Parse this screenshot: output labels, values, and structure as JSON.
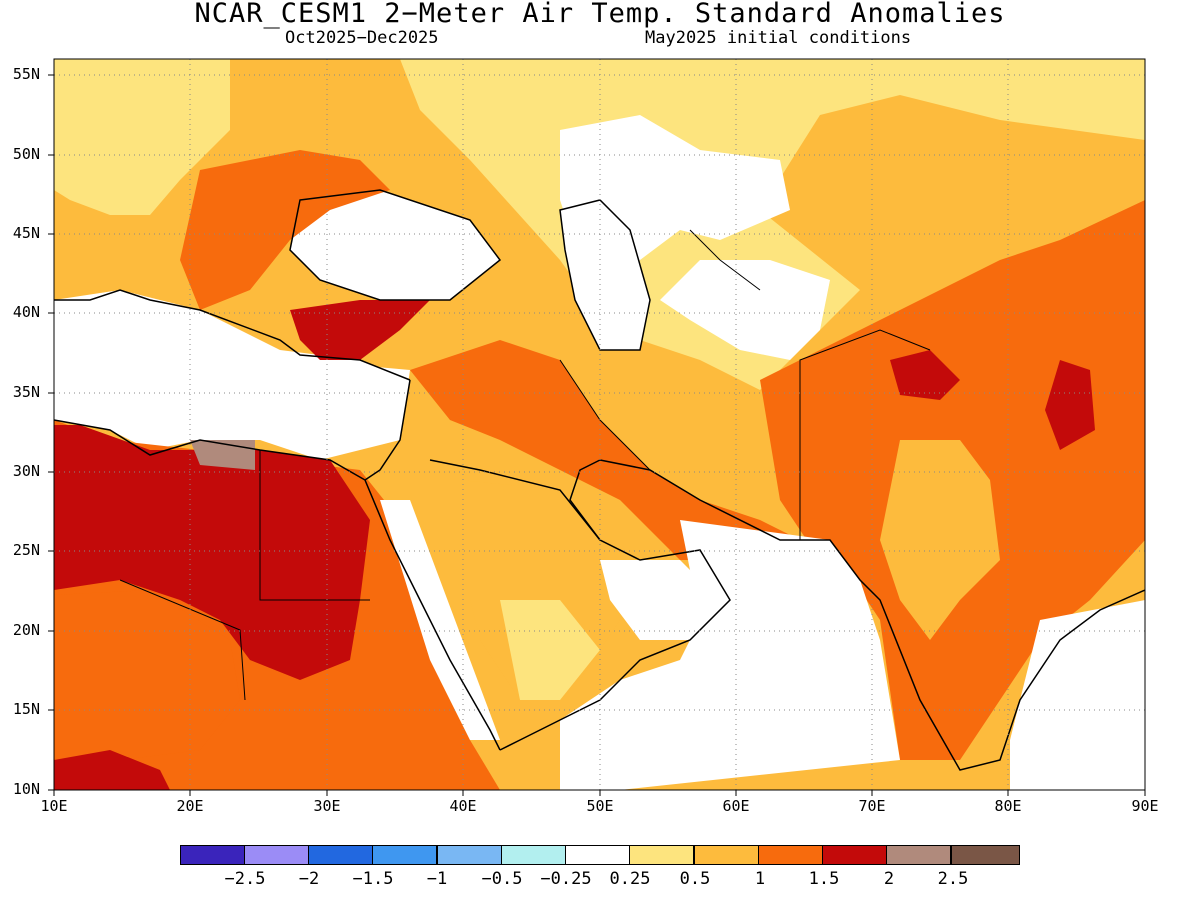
{
  "title": "NCAR_CESM1 2−Meter Air Temp. Standard Anomalies",
  "subtitle_left": "Oct2025−Dec2025",
  "subtitle_right": "May2025 initial conditions",
  "map": {
    "type": "filled-contour-map",
    "lon_range": [
      10,
      90
    ],
    "lat_range": [
      10,
      56
    ],
    "grid": true,
    "x_tick_labels": [
      "10E",
      "20E",
      "30E",
      "40E",
      "50E",
      "60E",
      "70E",
      "80E",
      "90E"
    ],
    "y_tick_labels": [
      "10N",
      "15N",
      "20N",
      "25N",
      "30N",
      "35N",
      "40N",
      "45N",
      "50N",
      "55N"
    ],
    "colors": {
      "c_m3": "#3a24bb",
      "c_m2_5": "#9b8cf6",
      "c_m2": "#2268e0",
      "c_m1_5": "#3f97f0",
      "c_m1": "#79b7f3",
      "c_m0_5": "#b2efef",
      "c_0": "#ffffff",
      "c_0_25": "#fde47e",
      "c_0_5": "#fdbb3d",
      "c_1": "#f76b0d",
      "c_1_5": "#c30a0a",
      "c_2": "#b08a7c",
      "c_2_5": "#7a5646",
      "coast": "#000000"
    }
  },
  "colorbar": {
    "labels": [
      "−2.5",
      "−2",
      "−1.5",
      "−1",
      "−0.5",
      "−0.25",
      "0.25",
      "0.5",
      "1",
      "1.5",
      "2",
      "2.5"
    ],
    "colors": [
      "#3a24bb",
      "#9b8cf6",
      "#2268e0",
      "#3f97f0",
      "#79b7f3",
      "#b2efef",
      "#ffffff",
      "#fde47e",
      "#fdbb3d",
      "#f76b0d",
      "#c30a0a",
      "#b08a7c",
      "#7a5646"
    ]
  }
}
